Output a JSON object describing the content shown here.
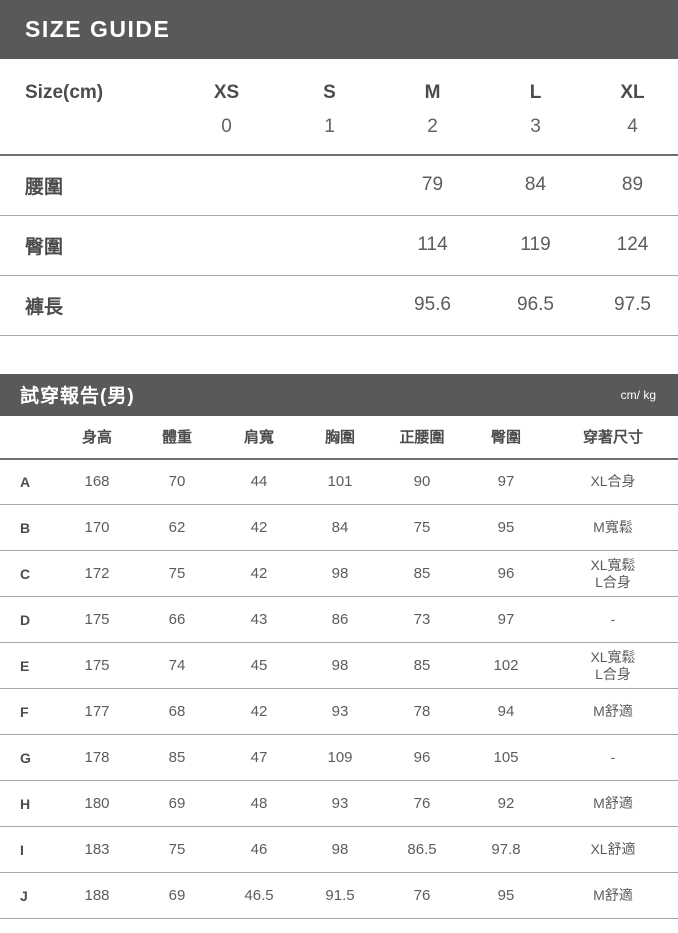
{
  "colors": {
    "bar_background": "#595959",
    "bar_text": "#ffffff",
    "border_dark": "#6f6f6f",
    "border_light": "#a6a6a6",
    "label_text": "#4c4c4c",
    "value_text": "#5c5c5c"
  },
  "size_guide": {
    "title": "SIZE GUIDE",
    "header": {
      "label": "Size(cm)",
      "sizes": [
        "XS",
        "S",
        "M",
        "L",
        "XL"
      ],
      "codes": [
        "0",
        "1",
        "2",
        "3",
        "4"
      ]
    },
    "rows": [
      {
        "label": "腰圍",
        "values": [
          "",
          "",
          "79",
          "84",
          "89"
        ]
      },
      {
        "label": "臀圍",
        "values": [
          "",
          "",
          "114",
          "119",
          "124"
        ]
      },
      {
        "label": "褲長",
        "values": [
          "",
          "",
          "95.6",
          "96.5",
          "97.5"
        ]
      }
    ]
  },
  "fit_report": {
    "title": "試穿報告(男)",
    "unit": "cm/ kg",
    "columns": [
      "身高",
      "體重",
      "肩寬",
      "胸圍",
      "正腰圍",
      "臀圍",
      "穿著尺寸"
    ],
    "rows": [
      {
        "id": "A",
        "values": [
          "168",
          "70",
          "44",
          "101",
          "90",
          "97"
        ],
        "fit": [
          "XL合身"
        ]
      },
      {
        "id": "B",
        "values": [
          "170",
          "62",
          "42",
          "84",
          "75",
          "95"
        ],
        "fit": [
          "M寬鬆"
        ]
      },
      {
        "id": "C",
        "values": [
          "172",
          "75",
          "42",
          "98",
          "85",
          "96"
        ],
        "fit": [
          "XL寬鬆",
          "L合身"
        ]
      },
      {
        "id": "D",
        "values": [
          "175",
          "66",
          "43",
          "86",
          "73",
          "97"
        ],
        "fit": [
          "-"
        ]
      },
      {
        "id": "E",
        "values": [
          "175",
          "74",
          "45",
          "98",
          "85",
          "102"
        ],
        "fit": [
          "XL寬鬆",
          "L合身"
        ]
      },
      {
        "id": "F",
        "values": [
          "177",
          "68",
          "42",
          "93",
          "78",
          "94"
        ],
        "fit": [
          "M舒適"
        ]
      },
      {
        "id": "G",
        "values": [
          "178",
          "85",
          "47",
          "109",
          "96",
          "105"
        ],
        "fit": [
          "-"
        ]
      },
      {
        "id": "H",
        "values": [
          "180",
          "69",
          "48",
          "93",
          "76",
          "92"
        ],
        "fit": [
          "M舒適"
        ]
      },
      {
        "id": "I",
        "values": [
          "183",
          "75",
          "46",
          "98",
          "86.5",
          "97.8"
        ],
        "fit": [
          "XL舒適"
        ]
      },
      {
        "id": "J",
        "values": [
          "188",
          "69",
          "46.5",
          "91.5",
          "76",
          "95"
        ],
        "fit": [
          "M舒適"
        ]
      }
    ]
  }
}
